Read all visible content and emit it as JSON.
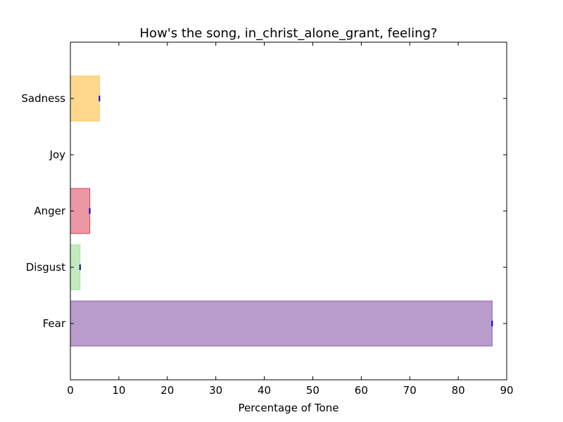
{
  "chart_data": {
    "type": "bar",
    "orientation": "horizontal",
    "title": "How's the song, in_christ_alone_grant, feeling?",
    "xlabel": "Percentage of Tone",
    "ylabel": "",
    "xlim": [
      0,
      90
    ],
    "xticks": [
      "0",
      "10",
      "20",
      "30",
      "40",
      "50",
      "60",
      "70",
      "80",
      "90"
    ],
    "categories": [
      "Fear",
      "Disgust",
      "Anger",
      "Joy",
      "Sadness"
    ],
    "values": [
      87,
      2,
      4,
      0,
      6
    ],
    "colors": [
      "#9b72b5",
      "#a6e3a1",
      "#e36b7d",
      "#ffffff",
      "#ffc65c"
    ],
    "edge_colors": [
      "#8a5fa8",
      "#a6e3a1",
      "#d9455c",
      "#ffffff",
      "#ffc65c"
    ],
    "error_marker_color": "#0000cc",
    "grid": false,
    "legend": "none"
  }
}
